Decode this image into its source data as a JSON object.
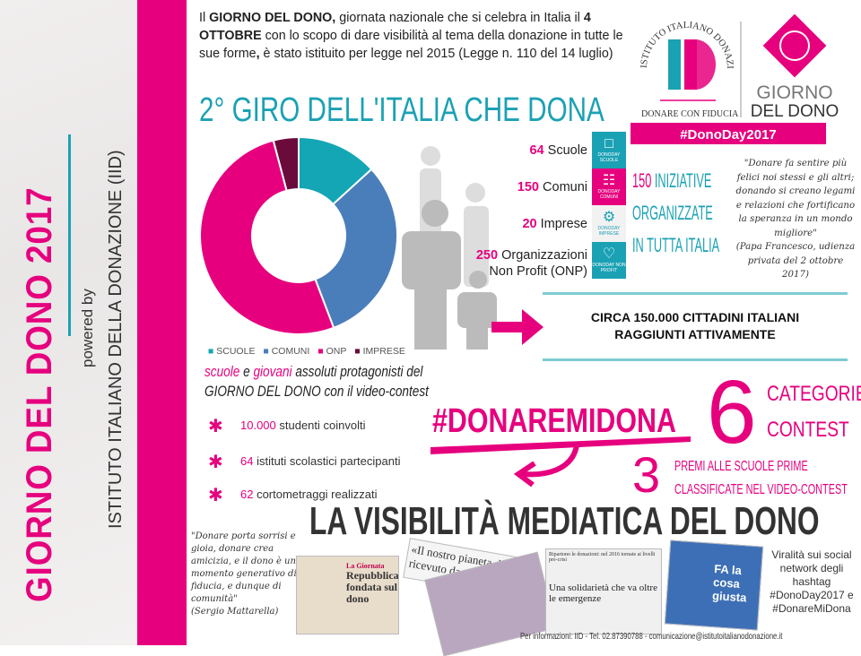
{
  "sidebar": {
    "title": "GIORNO DEL DONO 2017",
    "powered_by": "powered by",
    "institute": "ISTITUTO ITALIANO DELLA DONAZIONE (IID)"
  },
  "intro": {
    "p1": "Il ",
    "b1": "GIORNO DEL DONO,",
    "p2": " giornata nazionale che si celebra in Italia il ",
    "b2": "4 OTTOBRE",
    "p3": " con lo scopo di dare visibilità al tema della donazione in tutte le sue forme",
    "b3": ",",
    "p4": " è stato istituito per legge nel 2015 (Legge n. 110 del 14 luglio)"
  },
  "logo": {
    "ring": "ISTITUTO ITALIANO DONAZIONE",
    "mark": "ID",
    "tagline": "DONARE CON FIDUCIA",
    "brand1": "GIORNO",
    "brand2": "DEL DONO",
    "hashtag": "#DonoDay2017"
  },
  "title": "2° GIRO DELL'ITALIA CHE DONA",
  "chart_data": {
    "type": "pie",
    "donut": true,
    "categories": [
      "SCUOLE",
      "COMUNI",
      "ONP",
      "IMPRESE"
    ],
    "values": [
      64,
      150,
      250,
      20
    ],
    "colors": [
      "#14a6b4",
      "#4a7ebb",
      "#e6007e",
      "#6b0b3b"
    ],
    "legend": "bottom"
  },
  "stats": [
    {
      "num": "64",
      "label": " Scuole",
      "box": "DONODAY SCUOLE",
      "icon": "book-icon",
      "color": "#1ba1b4"
    },
    {
      "num": "150",
      "label": " Comuni",
      "box": "DONODAY COMUNI",
      "icon": "building-icon",
      "color": "#e6007e"
    },
    {
      "num": "20",
      "label": " Imprese",
      "box": "DONODAY IMPRESE",
      "icon": "gears-icon",
      "color": "#f2f2f2"
    },
    {
      "num": "250",
      "label": " Organizzazioni",
      "label2": "Non Profit (ONP)",
      "box": "DONODAY NON PROFIT",
      "icon": "heart-icon",
      "color": "#1ba1b4"
    }
  ],
  "iniziative": {
    "num": "150",
    "l1": " INIZIATIVE",
    "l2": "ORGANIZZATE",
    "l3": "IN TUTTA ITALIA"
  },
  "quote1": {
    "text": "\"Donare fa sentire più felici noi stessi e gli altri; donando si creano legami e relazioni che fortificano la speranza in un mondo migliore\"",
    "author": "(Papa Francesco, udienza privata del 2 ottobre 2017)"
  },
  "circa": {
    "l1": "CIRCA 150.000 CITTADINI ITALIANI",
    "l2": "RAGGIUNTI ATTIVAMENTE"
  },
  "contest": {
    "w1": "scuole",
    "w2": " e ",
    "w3": "giovani",
    "w4": " assoluti protagonisti del",
    "l2": "GIORNO DEL DONO con il video-contest",
    "bullets": [
      {
        "num": "10.000",
        "text": " studenti coinvolti"
      },
      {
        "num": "64",
        "text": " istituti scolastici partecipanti"
      },
      {
        "num": "62",
        "text": " cortometraggi realizzati"
      }
    ],
    "hashtag": "#DONAREMIDONA",
    "six": "6",
    "cat1": "CATEGORIE",
    "cat2": "CONTEST",
    "three": "3",
    "premi1": "PREMI ALLE SCUOLE PRIME",
    "premi2": "CLASSIFICATE NEL VIDEO-CONTEST"
  },
  "media": {
    "title": "LA VISIBILITÀ MEDIATICA DEL DONO",
    "quote": "\"Donare porta sorrisi e gioia, donare crea amicizia, e il dono è un momento generativo di fiducia, e dunque di comunità\"",
    "author": "(Sergio Mattarella)",
    "clip1_head": "La Giornata",
    "clip1_title": "Repubblica fondata sul dono",
    "clip2": "«Il nostro pianeta dono ricevuto da con...",
    "clip3_head": "Ripartono le donazioni: nel 2016 tornate ai livelli pre-crisi",
    "clip3_title": "Una solidarietà che va oltre le emergenze",
    "clip4": "FA la cosa giusta",
    "viral": "Viralità sui social network degli hashtag #DonoDay2017 e #DonareMiDona"
  },
  "footer": "Per informazioni: IID - Tel. 02.87390788 - comunicazione@istitutoitalianodonazione.it"
}
